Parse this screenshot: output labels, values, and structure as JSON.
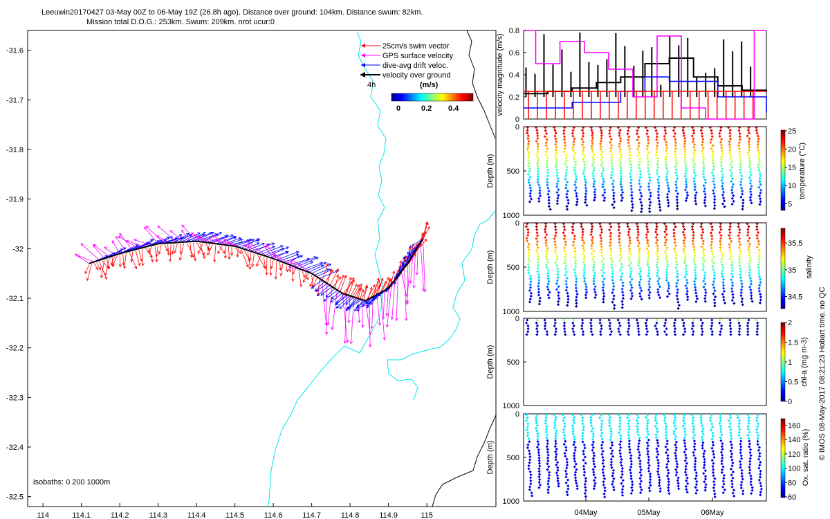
{
  "header": {
    "line1": "Leeuwin20170427 03-May 00Z to 06-May 19Z (26.8h ago). Distance over ground: 104km. Distance swum: 82km.",
    "line2": "Mission total D.O.G.: 253km. Swum: 209km. nrot ucur:0"
  },
  "footer_note": "© IMOS 08-May-2017 08:21:23 Hobart time. no QC",
  "colors": {
    "swim": "#ff0000",
    "gps": "#ff00ff",
    "drift": "#0000ff",
    "ground": "#000000",
    "coast": "#00e5ee"
  },
  "chart_data": [
    {
      "type": "scatter",
      "xlim": [
        113.96,
        115.18
      ],
      "ylim": [
        -32.52,
        -31.56
      ],
      "x_ticks": [
        "114",
        "114.1",
        "114.2",
        "114.3",
        "114.4",
        "114.5",
        "114.6",
        "114.7",
        "114.8",
        "114.9",
        "115"
      ],
      "y_ticks": [
        "-31.6",
        "-31.7",
        "-31.8",
        "-31.9",
        "-32",
        "-32.1",
        "-32.2",
        "-32.3",
        "-32.4",
        "-32.5"
      ],
      "legend": {
        "placement": "top-right",
        "entries": [
          "25cm/s swim vector",
          "GPS surface velocity",
          "dive-avg drift veloc.",
          "velocity over ground"
        ],
        "time_label": "4h"
      },
      "colorbar": {
        "label": "(m/s)",
        "ticks": [
          "0",
          "0.2",
          "0.4"
        ],
        "range": [
          0,
          0.5
        ]
      },
      "isobaths_label": "isobaths: 0   200  1000m",
      "track": [
        {
          "lon": 114.12,
          "lat": -32.03
        },
        {
          "lon": 114.2,
          "lat": -32.01
        },
        {
          "lon": 114.3,
          "lat": -31.99
        },
        {
          "lon": 114.4,
          "lat": -31.985
        },
        {
          "lon": 114.5,
          "lat": -31.995
        },
        {
          "lon": 114.6,
          "lat": -32.02
        },
        {
          "lon": 114.7,
          "lat": -32.05
        },
        {
          "lon": 114.78,
          "lat": -32.09
        },
        {
          "lon": 114.84,
          "lat": -32.105
        },
        {
          "lon": 114.9,
          "lat": -32.08
        },
        {
          "lon": 114.95,
          "lat": -32.03
        },
        {
          "lon": 114.99,
          "lat": -31.98
        }
      ]
    },
    {
      "type": "line",
      "ylabel": "velocity magnitude (m/s)",
      "ylim": [
        0,
        0.8
      ],
      "y_ticks": [
        "0",
        "0.2",
        "0.4",
        "0.6",
        "0.8"
      ],
      "series": [
        {
          "name": "velocity over ground",
          "x": [
            0,
            0.1,
            0.2,
            0.3,
            0.4,
            0.5,
            0.6,
            0.7,
            0.8,
            0.9,
            1
          ],
          "values": [
            0.23,
            0.25,
            0.28,
            0.33,
            0.38,
            0.5,
            0.55,
            0.38,
            0.3,
            0.26,
            0.25
          ]
        },
        {
          "name": "GPS surface velocity",
          "x": [
            0,
            0.05,
            0.15,
            0.25,
            0.35,
            0.45,
            0.55,
            0.65,
            0.75,
            0.85,
            0.95,
            1
          ],
          "values": [
            0.8,
            0.5,
            0.7,
            0.6,
            0.45,
            0.2,
            0.75,
            0.1,
            0.0,
            0.0,
            0.8,
            0.8
          ]
        },
        {
          "name": "dive-avg drift veloc.",
          "x": [
            0,
            0.2,
            0.4,
            0.5,
            0.6,
            0.8,
            1
          ],
          "values": [
            0.1,
            0.15,
            0.25,
            0.38,
            0.34,
            0.2,
            0.06
          ]
        },
        {
          "name": "25cm/s swim vector",
          "x": [
            0,
            1
          ],
          "values": [
            0.25,
            0.25
          ]
        }
      ]
    },
    {
      "type": "scatter",
      "ylabel": "Depth (m)",
      "ylim": [
        1000,
        0
      ],
      "y_ticks": [
        "0",
        "500",
        "1000"
      ],
      "colorbar": {
        "label": "temperature (°C)",
        "ticks": [
          "5",
          "10",
          "15",
          "20",
          "25"
        ],
        "range": [
          3,
          25
        ]
      }
    },
    {
      "type": "scatter",
      "ylabel": "Depth (m)",
      "ylim": [
        1000,
        0
      ],
      "y_ticks": [
        "0",
        "500",
        "1000"
      ],
      "colorbar": {
        "label": "salinity",
        "ticks": [
          "34.5",
          "35",
          "35.5"
        ],
        "range": [
          34.3,
          35.8
        ]
      }
    },
    {
      "type": "scatter",
      "ylabel": "Depth (m)",
      "ylim": [
        1000,
        0
      ],
      "y_ticks": [
        "0",
        "500",
        "1000"
      ],
      "colorbar": {
        "label": "chl-a (mg m-3)",
        "ticks": [
          "0",
          "0.5",
          "1",
          "1.5",
          "2"
        ],
        "range": [
          0,
          2
        ]
      }
    },
    {
      "type": "scatter",
      "ylabel": "Depth (m)",
      "ylim": [
        1000,
        0
      ],
      "y_ticks": [
        "0",
        "500",
        "1000"
      ],
      "x_ticks": [
        "04May",
        "05May",
        "06May"
      ],
      "colorbar": {
        "label": "Ox. sat. ratio (%)",
        "ticks": [
          "60",
          "80",
          "100",
          "120",
          "140",
          "160"
        ],
        "range": [
          60,
          170
        ]
      }
    }
  ]
}
